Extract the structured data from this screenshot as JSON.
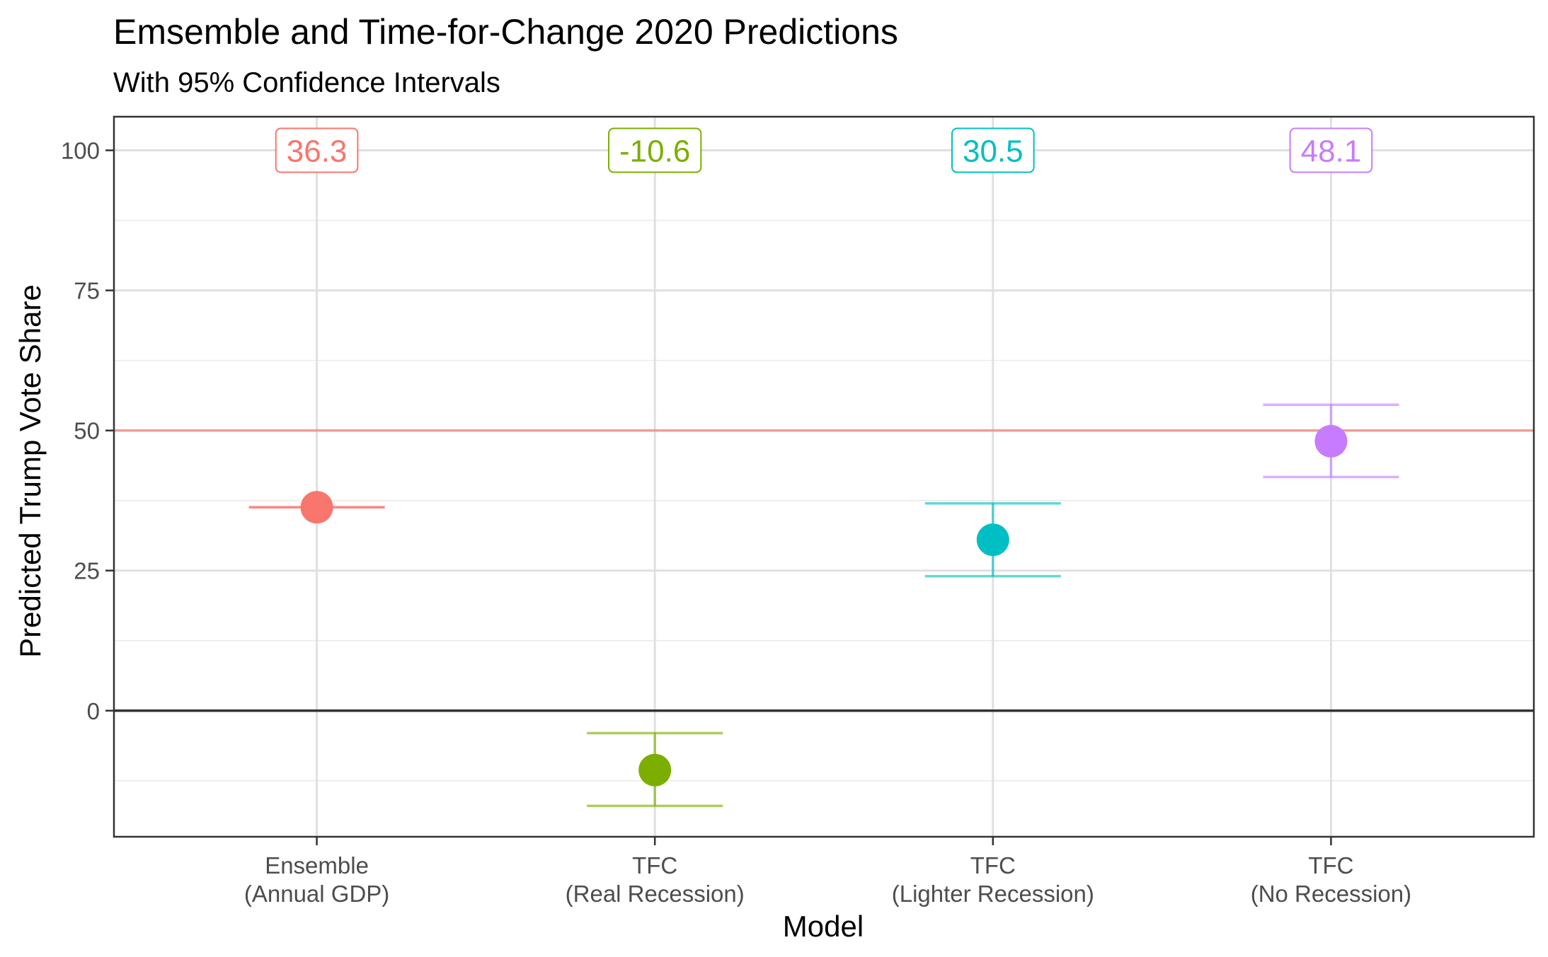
{
  "chart_data": {
    "type": "scatter",
    "title": "Emsemble and Time-for-Change 2020 Predictions",
    "subtitle": "With 95% Confidence Intervals",
    "xlabel": "Model",
    "ylabel": "Predicted Trump Vote Share",
    "categories": [
      [
        "Ensemble",
        "(Annual GDP)"
      ],
      [
        "TFC",
        "(Real Recession)"
      ],
      [
        "TFC",
        "(Lighter Recession)"
      ],
      [
        "TFC",
        "(No Recession)"
      ]
    ],
    "series": [
      {
        "category_index": 0,
        "value": 36.3,
        "lower": 36.3,
        "upper": 36.3,
        "label": "36.3",
        "color": "#F8766D"
      },
      {
        "category_index": 1,
        "value": -10.6,
        "lower": -17.0,
        "upper": -4.0,
        "label": "-10.6",
        "color": "#7CAE00"
      },
      {
        "category_index": 2,
        "value": 30.5,
        "lower": 24.0,
        "upper": 37.0,
        "label": "30.5",
        "color": "#00BFC4"
      },
      {
        "category_index": 3,
        "value": 48.1,
        "lower": 41.7,
        "upper": 54.6,
        "label": "48.1",
        "color": "#C77CFF"
      }
    ],
    "yticks": [
      0,
      25,
      50,
      75,
      100
    ],
    "ylim": [
      -22.5,
      106
    ],
    "reference_lines": [
      {
        "y": 50,
        "color": "#F8766D"
      },
      {
        "y": 0,
        "color": "#333333"
      }
    ],
    "label_y": 100,
    "grid": true,
    "legend": "none"
  }
}
